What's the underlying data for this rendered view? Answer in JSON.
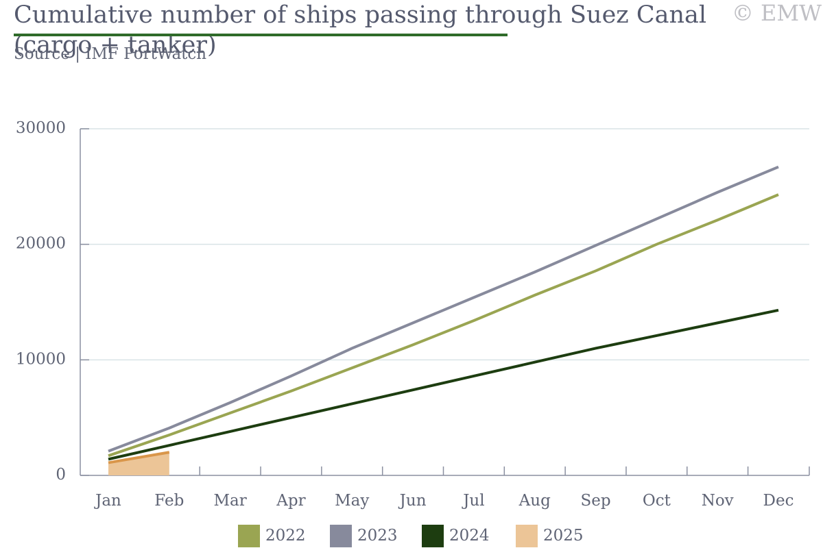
{
  "chart_data": {
    "type": "line",
    "title": "Cumulative number of ships passing through Suez Canal (cargo + tanker)",
    "source": "Source | IMF PortWatch",
    "watermark": "© EMW",
    "categories": [
      "Jan",
      "Feb",
      "Mar",
      "Apr",
      "May",
      "Jun",
      "Jul",
      "Aug",
      "Sep",
      "Oct",
      "Nov",
      "Dec"
    ],
    "series": [
      {
        "name": "2022",
        "color": "#9aa552",
        "values": [
          1700,
          3500,
          5400,
          7300,
          9300,
          11300,
          13400,
          15600,
          17700,
          20000,
          22100,
          24300
        ]
      },
      {
        "name": "2023",
        "color": "#878a9c",
        "values": [
          2100,
          4100,
          6300,
          8600,
          11000,
          13200,
          15400,
          17600,
          19900,
          22200,
          24500,
          26700
        ]
      },
      {
        "name": "2024",
        "color": "#1d3d10",
        "values": [
          1400,
          2600,
          3800,
          5000,
          6200,
          7400,
          8600,
          9800,
          11000,
          12100,
          13200,
          14300
        ]
      },
      {
        "name": "2025",
        "color": "#d9964a",
        "fill_color": "#ecc597",
        "values": [
          1100,
          2000,
          null,
          null,
          null,
          null,
          null,
          null,
          null,
          null,
          null,
          null
        ]
      }
    ],
    "ylim": [
      0,
      30000
    ],
    "yticks": [
      0,
      10000,
      20000,
      30000
    ],
    "grid": true,
    "legend": "bottom"
  }
}
